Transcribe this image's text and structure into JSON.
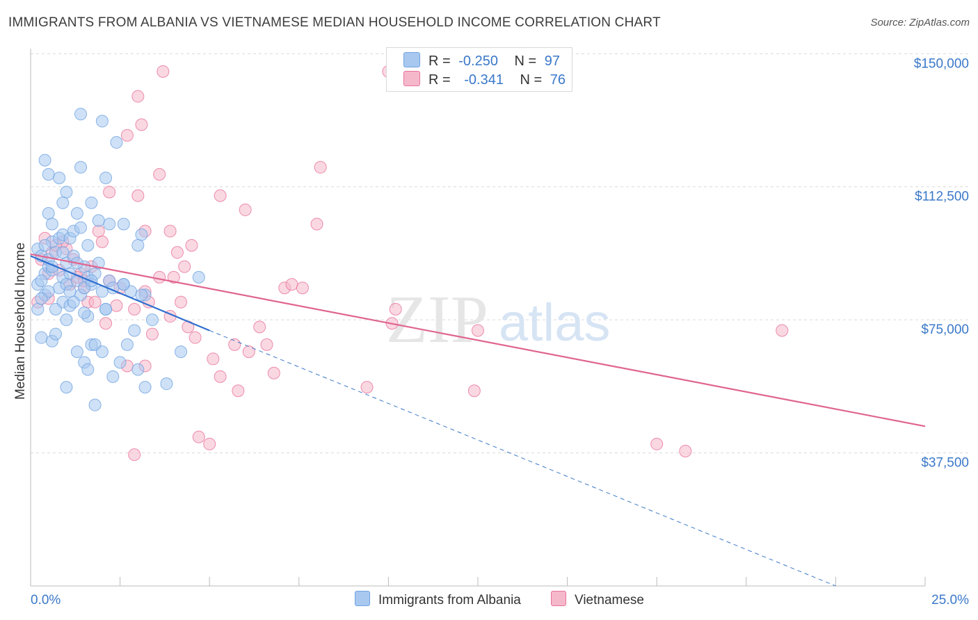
{
  "title": "IMMIGRANTS FROM ALBANIA VS VIETNAMESE MEDIAN HOUSEHOLD INCOME CORRELATION CHART",
  "source": "Source: ZipAtlas.com",
  "watermark": {
    "zip": "ZIP",
    "atlas": "atlas"
  },
  "legend_top": [
    {
      "r_label": "R =",
      "r_value": "-0.250",
      "n_label": "N =",
      "n_value": "97",
      "color": "#a8c8f0"
    },
    {
      "r_label": "R =",
      "r_value": "-0.341",
      "n_label": "N =",
      "n_value": "76",
      "color": "#f5b8cb"
    }
  ],
  "legend_bottom": [
    {
      "label": "Immigrants from Albania",
      "color": "#a8c8f0"
    },
    {
      "label": "Vietnamese",
      "color": "#f5b8cb"
    }
  ],
  "chart_data": {
    "type": "scatter",
    "title": "IMMIGRANTS FROM ALBANIA VS VIETNAMESE MEDIAN HOUSEHOLD INCOME CORRELATION CHART",
    "xlabel": "",
    "ylabel": "Median Household Income",
    "xlim": [
      0,
      25
    ],
    "ylim": [
      0,
      153000
    ],
    "x_tick_labels": [
      "0.0%",
      "25.0%"
    ],
    "y_ticks": [
      37500,
      75000,
      112500,
      150000
    ],
    "y_tick_labels": [
      "$37,500",
      "$75,000",
      "$112,500",
      "$150,000"
    ],
    "series": [
      {
        "name": "Immigrants from Albania",
        "color": "#6fa3e0",
        "fill": "#a8c8f0",
        "r": -0.25,
        "n": 97,
        "trend": {
          "x0": 0.0,
          "y0": 93000,
          "x1": 5.0,
          "y1": 72000,
          "dash_to_x": 22.5,
          "dash_to_y": 0
        },
        "points": [
          [
            0.2,
            95000
          ],
          [
            0.3,
            93000
          ],
          [
            0.4,
            88000
          ],
          [
            0.5,
            90000
          ],
          [
            0.2,
            85000
          ],
          [
            0.6,
            97000
          ],
          [
            0.4,
            82000
          ],
          [
            0.3,
            86000
          ],
          [
            0.8,
            98000
          ],
          [
            0.5,
            92000
          ],
          [
            0.7,
            94000
          ],
          [
            0.6,
            89000
          ],
          [
            0.9,
            87000
          ],
          [
            1.0,
            91000
          ],
          [
            0.8,
            84000
          ],
          [
            1.1,
            88000
          ],
          [
            1.2,
            93000
          ],
          [
            1.3,
            86000
          ],
          [
            0.9,
            80000
          ],
          [
            0.7,
            78000
          ],
          [
            1.0,
            75000
          ],
          [
            1.1,
            79000
          ],
          [
            1.4,
            82000
          ],
          [
            1.5,
            90000
          ],
          [
            1.6,
            87000
          ],
          [
            1.7,
            85000
          ],
          [
            1.8,
            88000
          ],
          [
            1.9,
            91000
          ],
          [
            2.0,
            83000
          ],
          [
            2.2,
            86000
          ],
          [
            2.1,
            78000
          ],
          [
            1.6,
            76000
          ],
          [
            0.4,
            120000
          ],
          [
            0.5,
            116000
          ],
          [
            0.8,
            115000
          ],
          [
            1.0,
            111000
          ],
          [
            0.9,
            108000
          ],
          [
            1.4,
            118000
          ],
          [
            1.3,
            105000
          ],
          [
            1.7,
            108000
          ],
          [
            2.1,
            115000
          ],
          [
            1.4,
            133000
          ],
          [
            2.0,
            131000
          ],
          [
            2.4,
            125000
          ],
          [
            0.5,
            105000
          ],
          [
            0.6,
            102000
          ],
          [
            0.9,
            99000
          ],
          [
            1.1,
            98000
          ],
          [
            1.2,
            100000
          ],
          [
            1.4,
            101000
          ],
          [
            2.2,
            102000
          ],
          [
            2.6,
            102000
          ],
          [
            3.1,
            99000
          ],
          [
            3.0,
            96000
          ],
          [
            1.6,
            96000
          ],
          [
            1.9,
            103000
          ],
          [
            0.3,
            70000
          ],
          [
            0.6,
            69000
          ],
          [
            0.7,
            71000
          ],
          [
            1.3,
            66000
          ],
          [
            1.5,
            63000
          ],
          [
            1.6,
            61000
          ],
          [
            1.7,
            68000
          ],
          [
            1.8,
            68000
          ],
          [
            2.0,
            66000
          ],
          [
            2.3,
            59000
          ],
          [
            2.5,
            63000
          ],
          [
            2.7,
            68000
          ],
          [
            3.0,
            61000
          ],
          [
            3.2,
            56000
          ],
          [
            3.8,
            57000
          ],
          [
            4.2,
            66000
          ],
          [
            1.0,
            56000
          ],
          [
            1.8,
            51000
          ],
          [
            2.9,
            72000
          ],
          [
            3.4,
            75000
          ],
          [
            4.7,
            87000
          ],
          [
            2.6,
            85000
          ],
          [
            2.8,
            83000
          ],
          [
            3.2,
            82000
          ],
          [
            1.2,
            80000
          ],
          [
            1.5,
            77000
          ],
          [
            2.1,
            78000
          ],
          [
            1.0,
            85000
          ],
          [
            0.2,
            78000
          ],
          [
            0.4,
            96000
          ],
          [
            0.6,
            90000
          ],
          [
            0.9,
            94000
          ],
          [
            1.3,
            91000
          ],
          [
            1.5,
            84000
          ],
          [
            1.7,
            86000
          ],
          [
            2.3,
            84000
          ],
          [
            2.6,
            85000
          ],
          [
            3.1,
            82000
          ],
          [
            0.5,
            83000
          ],
          [
            1.1,
            83000
          ],
          [
            0.3,
            81000
          ]
        ]
      },
      {
        "name": "Vietnamese",
        "color": "#e8729b",
        "fill": "#f5b8cb",
        "r": -0.341,
        "n": 76,
        "trend": {
          "x0": 0.0,
          "y0": 93500,
          "x1": 25.0,
          "y1": 45000
        },
        "points": [
          [
            0.3,
            92000
          ],
          [
            0.5,
            88000
          ],
          [
            0.6,
            94000
          ],
          [
            0.8,
            89000
          ],
          [
            1.0,
            95000
          ],
          [
            0.9,
            97000
          ],
          [
            1.2,
            92000
          ],
          [
            1.4,
            88000
          ],
          [
            1.5,
            84000
          ],
          [
            1.7,
            90000
          ],
          [
            0.4,
            98000
          ],
          [
            0.7,
            96000
          ],
          [
            1.1,
            85000
          ],
          [
            1.3,
            87000
          ],
          [
            2.0,
            97000
          ],
          [
            2.2,
            86000
          ],
          [
            1.6,
            80000
          ],
          [
            1.8,
            80000
          ],
          [
            2.1,
            74000
          ],
          [
            2.4,
            79000
          ],
          [
            2.9,
            78000
          ],
          [
            3.2,
            83000
          ],
          [
            3.4,
            71000
          ],
          [
            3.9,
            76000
          ],
          [
            4.2,
            80000
          ],
          [
            4.4,
            73000
          ],
          [
            4.6,
            70000
          ],
          [
            5.1,
            64000
          ],
          [
            5.3,
            59000
          ],
          [
            5.8,
            55000
          ],
          [
            6.1,
            66000
          ],
          [
            6.4,
            73000
          ],
          [
            6.6,
            68000
          ],
          [
            6.8,
            60000
          ],
          [
            7.1,
            84000
          ],
          [
            7.3,
            85000
          ],
          [
            7.6,
            84000
          ],
          [
            4.3,
            90000
          ],
          [
            4.5,
            96000
          ],
          [
            4.1,
            94000
          ],
          [
            3.6,
            87000
          ],
          [
            3.9,
            100000
          ],
          [
            3.0,
            110000
          ],
          [
            3.2,
            100000
          ],
          [
            3.6,
            116000
          ],
          [
            2.2,
            111000
          ],
          [
            1.9,
            100000
          ],
          [
            2.7,
            127000
          ],
          [
            3.0,
            138000
          ],
          [
            3.1,
            130000
          ],
          [
            3.7,
            145000
          ],
          [
            5.3,
            110000
          ],
          [
            6.0,
            106000
          ],
          [
            8.0,
            102000
          ],
          [
            8.1,
            118000
          ],
          [
            10.0,
            145000
          ],
          [
            10.2,
            78000
          ],
          [
            10.1,
            74000
          ],
          [
            12.5,
            72000
          ],
          [
            12.4,
            55000
          ],
          [
            9.4,
            56000
          ],
          [
            17.5,
            40000
          ],
          [
            18.3,
            38000
          ],
          [
            21.0,
            72000
          ],
          [
            2.9,
            37000
          ],
          [
            4.7,
            42000
          ],
          [
            5.0,
            40000
          ],
          [
            2.7,
            62000
          ],
          [
            3.2,
            62000
          ],
          [
            0.5,
            81000
          ],
          [
            0.2,
            80000
          ],
          [
            1.5,
            86000
          ],
          [
            2.5,
            84000
          ],
          [
            3.3,
            80000
          ],
          [
            4.0,
            87000
          ],
          [
            5.7,
            68000
          ]
        ]
      }
    ]
  }
}
